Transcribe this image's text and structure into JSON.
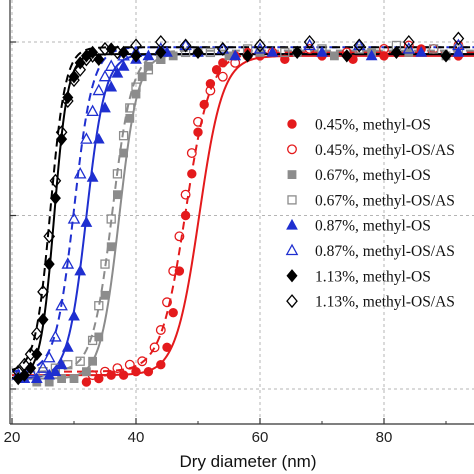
{
  "chart_data": {
    "type": "scatter",
    "title": "",
    "xlabel": "Dry diameter (nm)",
    "ylabel": "",
    "xlim": [
      20,
      95
    ],
    "ylim": [
      0,
      1.05
    ],
    "x_ticks": [
      20,
      40,
      60,
      80
    ],
    "x_tick_labels": [
      "20",
      "40",
      "60",
      "80"
    ],
    "grid": true,
    "legend_position": "center-right",
    "series": [
      {
        "name": "0.45%, methyl-OS",
        "marker": "circle-filled",
        "color": "#e41a1c",
        "x": [
          32,
          34,
          36,
          38,
          40,
          42,
          44,
          45,
          46,
          47,
          48,
          49,
          50,
          51,
          52,
          53,
          54,
          56,
          58,
          60,
          64,
          70,
          75,
          80,
          86,
          92
        ],
        "y": [
          0.02,
          0.03,
          0.04,
          0.04,
          0.05,
          0.05,
          0.07,
          0.12,
          0.22,
          0.34,
          0.5,
          0.62,
          0.74,
          0.82,
          0.88,
          0.92,
          0.94,
          0.96,
          0.97,
          0.96,
          0.95,
          0.96,
          0.95,
          0.96,
          0.98,
          0.96
        ]
      },
      {
        "name": "0.45%, methyl-OS/AS",
        "marker": "circle-open",
        "color": "#e41a1c",
        "x": [
          33,
          35,
          37,
          39,
          41,
          43,
          44,
          45,
          46,
          47,
          48,
          49,
          50,
          52,
          54,
          56,
          58,
          62,
          68,
          74,
          80,
          84,
          88,
          92
        ],
        "y": [
          0.04,
          0.05,
          0.06,
          0.07,
          0.08,
          0.12,
          0.17,
          0.25,
          0.34,
          0.44,
          0.56,
          0.68,
          0.77,
          0.86,
          0.9,
          0.94,
          0.96,
          0.97,
          0.98,
          0.97,
          0.98,
          0.99,
          0.98,
          0.99
        ]
      },
      {
        "name": "0.67%, methyl-OS",
        "marker": "square-filled",
        "color": "#8c8c8c",
        "x": [
          24,
          26,
          28,
          30,
          32,
          33,
          34,
          35,
          36,
          37,
          38,
          39,
          40,
          41,
          42,
          44,
          46,
          50,
          55,
          60,
          66,
          72,
          78,
          84,
          90
        ],
        "y": [
          0.02,
          0.02,
          0.03,
          0.03,
          0.05,
          0.08,
          0.15,
          0.27,
          0.41,
          0.56,
          0.68,
          0.78,
          0.85,
          0.9,
          0.93,
          0.95,
          0.96,
          0.97,
          0.96,
          0.97,
          0.97,
          0.96,
          0.97,
          0.97,
          0.96
        ]
      },
      {
        "name": "0.67%, methyl-OS/AS",
        "marker": "square-open",
        "color": "#8c8c8c",
        "x": [
          23,
          25,
          27,
          29,
          31,
          33,
          34,
          35,
          36,
          37,
          38,
          39,
          40,
          42,
          44,
          48,
          52,
          58,
          64,
          70,
          76,
          82,
          88,
          92
        ],
        "y": [
          0.04,
          0.05,
          0.06,
          0.07,
          0.08,
          0.14,
          0.24,
          0.36,
          0.49,
          0.62,
          0.73,
          0.81,
          0.87,
          0.92,
          0.95,
          0.97,
          0.97,
          0.98,
          0.97,
          0.98,
          0.98,
          0.99,
          0.98,
          0.98
        ]
      },
      {
        "name": "0.87%, methyl-OS",
        "marker": "triangle-filled",
        "color": "#1f2fd0",
        "x": [
          22,
          24,
          26,
          27,
          28,
          29,
          30,
          31,
          32,
          33,
          34,
          35,
          36,
          37,
          38,
          40,
          42,
          45,
          50,
          56,
          62,
          70,
          78,
          86,
          92
        ],
        "y": [
          0.03,
          0.03,
          0.04,
          0.05,
          0.07,
          0.12,
          0.21,
          0.34,
          0.48,
          0.61,
          0.72,
          0.81,
          0.87,
          0.91,
          0.93,
          0.95,
          0.96,
          0.97,
          0.97,
          0.96,
          0.97,
          0.97,
          0.96,
          0.97,
          0.97
        ]
      },
      {
        "name": "0.87%, methyl-OS/AS",
        "marker": "triangle-open",
        "color": "#1f2fd0",
        "x": [
          21,
          23,
          25,
          26,
          27,
          28,
          29,
          30,
          31,
          32,
          33,
          34,
          35,
          36,
          38,
          40,
          44,
          48,
          54,
          60,
          68,
          76,
          84,
          92
        ],
        "y": [
          0.04,
          0.05,
          0.06,
          0.09,
          0.15,
          0.24,
          0.36,
          0.49,
          0.62,
          0.72,
          0.8,
          0.86,
          0.9,
          0.93,
          0.96,
          0.97,
          0.98,
          0.99,
          0.98,
          0.98,
          0.99,
          0.99,
          0.98,
          0.99
        ]
      },
      {
        "name": "1.13%, methyl-OS",
        "marker": "diamond-filled",
        "color": "#000000",
        "x": [
          21,
          22,
          23,
          24,
          25,
          26,
          27,
          28,
          29,
          30,
          31,
          32,
          33,
          34,
          36,
          38,
          40,
          44,
          50,
          58,
          66,
          74,
          82,
          90
        ],
        "y": [
          0.03,
          0.04,
          0.06,
          0.1,
          0.2,
          0.36,
          0.55,
          0.72,
          0.84,
          0.9,
          0.94,
          0.96,
          0.97,
          0.95,
          0.98,
          0.97,
          0.96,
          0.97,
          0.97,
          0.96,
          0.97,
          0.96,
          0.97,
          0.96
        ]
      },
      {
        "name": "1.13%, methyl-OS/AS",
        "marker": "diamond-open",
        "color": "#000000",
        "x": [
          21,
          22,
          23,
          24,
          25,
          26,
          27,
          28,
          29,
          30,
          31,
          32,
          33,
          35,
          37,
          40,
          44,
          48,
          54,
          60,
          68,
          76,
          84,
          92
        ],
        "y": [
          0.05,
          0.07,
          0.1,
          0.16,
          0.28,
          0.44,
          0.6,
          0.74,
          0.83,
          0.89,
          0.92,
          0.95,
          0.96,
          0.98,
          0.97,
          0.99,
          1.0,
          0.99,
          0.98,
          0.99,
          1.0,
          0.99,
          1.0,
          1.01
        ]
      }
    ],
    "fits": [
      {
        "series": "0.45%, methyl-OS",
        "style": "solid",
        "color": "#e41a1c",
        "d50": 50.2,
        "width": 1.9,
        "base": 0.04,
        "top": 0.96
      },
      {
        "series": "0.45%, methyl-OS/AS",
        "style": "dashed",
        "color": "#e41a1c",
        "d50": 48.0,
        "width": 2.0,
        "base": 0.05,
        "top": 0.97
      },
      {
        "series": "0.67%, methyl-OS",
        "style": "solid",
        "color": "#8c8c8c",
        "d50": 37.3,
        "width": 1.5,
        "base": 0.03,
        "top": 0.965
      },
      {
        "series": "0.67%, methyl-OS/AS",
        "style": "dashed",
        "color": "#8c8c8c",
        "d50": 36.2,
        "width": 1.6,
        "base": 0.05,
        "top": 0.975
      },
      {
        "series": "0.87%, methyl-OS",
        "style": "solid",
        "color": "#1f2fd0",
        "d50": 32.0,
        "width": 1.5,
        "base": 0.03,
        "top": 0.965
      },
      {
        "series": "0.87%, methyl-OS/AS",
        "style": "dashed",
        "color": "#1f2fd0",
        "d50": 30.0,
        "width": 1.5,
        "base": 0.05,
        "top": 0.985
      },
      {
        "series": "1.13%, methyl-OS",
        "style": "solid",
        "color": "#000000",
        "d50": 26.8,
        "width": 1.1,
        "base": 0.03,
        "top": 0.965
      },
      {
        "series": "1.13%, methyl-OS/AS",
        "style": "dashed",
        "color": "#000000",
        "d50": 26.2,
        "width": 1.2,
        "base": 0.05,
        "top": 0.985
      }
    ]
  }
}
